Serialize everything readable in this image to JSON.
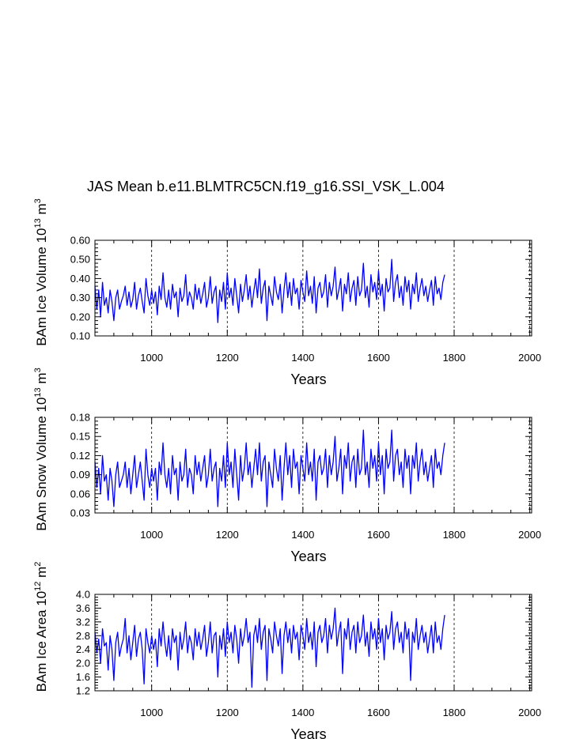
{
  "title": "JAS Mean b.e11.BLMTRC5CN.f19_g16.SSI_VSK_L.004",
  "style": {
    "line_color": "#0000ff",
    "grid": "vertical dashed at major x ticks"
  },
  "chart_data": [
    {
      "type": "line",
      "title": "",
      "xlabel": "Years",
      "ylabel_main": "BAm Ice Volume 10",
      "ylabel_sup": "13",
      "ylabel_tail": " m",
      "ylabel_sup2": "3",
      "xlim": [
        850,
        2005
      ],
      "ylim": [
        0.1,
        0.6
      ],
      "xticks": [
        1000,
        1200,
        1400,
        1600,
        1800,
        2000
      ],
      "yticks": [
        "0.10",
        "0.20",
        "0.30",
        "0.40",
        "0.50",
        "0.60"
      ],
      "series": [
        {
          "x_start": 850,
          "x_step": 5,
          "values": [
            0.36,
            0.24,
            0.34,
            0.2,
            0.38,
            0.26,
            0.3,
            0.22,
            0.34,
            0.28,
            0.18,
            0.3,
            0.34,
            0.24,
            0.28,
            0.31,
            0.36,
            0.26,
            0.33,
            0.25,
            0.29,
            0.38,
            0.24,
            0.31,
            0.35,
            0.28,
            0.22,
            0.4,
            0.31,
            0.26,
            0.34,
            0.27,
            0.33,
            0.21,
            0.36,
            0.29,
            0.43,
            0.3,
            0.25,
            0.34,
            0.24,
            0.37,
            0.3,
            0.33,
            0.2,
            0.35,
            0.28,
            0.31,
            0.42,
            0.26,
            0.33,
            0.3,
            0.24,
            0.37,
            0.29,
            0.35,
            0.27,
            0.32,
            0.38,
            0.25,
            0.3,
            0.41,
            0.27,
            0.33,
            0.36,
            0.17,
            0.34,
            0.28,
            0.38,
            0.24,
            0.43,
            0.3,
            0.35,
            0.26,
            0.4,
            0.31,
            0.22,
            0.37,
            0.28,
            0.34,
            0.42,
            0.29,
            0.36,
            0.25,
            0.33,
            0.4,
            0.3,
            0.45,
            0.27,
            0.35,
            0.39,
            0.18,
            0.36,
            0.31,
            0.26,
            0.41,
            0.33,
            0.29,
            0.37,
            0.22,
            0.34,
            0.43,
            0.3,
            0.38,
            0.26,
            0.4,
            0.32,
            0.35,
            0.24,
            0.39,
            0.33,
            0.28,
            0.44,
            0.31,
            0.36,
            0.27,
            0.41,
            0.22,
            0.35,
            0.38,
            0.3,
            0.33,
            0.42,
            0.25,
            0.38,
            0.31,
            0.36,
            0.46,
            0.29,
            0.34,
            0.4,
            0.23,
            0.37,
            0.32,
            0.43,
            0.28,
            0.35,
            0.39,
            0.26,
            0.41,
            0.31,
            0.34,
            0.48,
            0.3,
            0.36,
            0.25,
            0.42,
            0.33,
            0.38,
            0.29,
            0.44,
            0.31,
            0.37,
            0.23,
            0.4,
            0.33,
            0.35,
            0.5,
            0.28,
            0.38,
            0.42,
            0.3,
            0.36,
            0.26,
            0.41,
            0.33,
            0.39,
            0.24,
            0.37,
            0.32,
            0.43,
            0.28,
            0.35,
            0.4,
            0.31,
            0.36,
            0.28,
            0.34,
            0.39,
            0.26,
            0.41,
            0.32,
            0.35,
            0.29,
            0.38,
            0.42
          ]
        }
      ]
    },
    {
      "type": "line",
      "title": "",
      "xlabel": "Years",
      "ylabel_main": "BAm Snow Volume 10",
      "ylabel_sup": "13",
      "ylabel_tail": " m",
      "ylabel_sup2": "3",
      "xlim": [
        850,
        2005
      ],
      "ylim": [
        0.03,
        0.18
      ],
      "xticks": [
        1000,
        1200,
        1400,
        1600,
        1800,
        2000
      ],
      "yticks": [
        "0.03",
        "0.06",
        "0.09",
        "0.12",
        "0.15",
        "0.18"
      ],
      "series": [
        {
          "x_start": 850,
          "x_step": 5,
          "values": [
            0.11,
            0.07,
            0.1,
            0.06,
            0.12,
            0.08,
            0.09,
            0.05,
            0.1,
            0.08,
            0.04,
            0.09,
            0.11,
            0.07,
            0.08,
            0.09,
            0.11,
            0.07,
            0.1,
            0.06,
            0.09,
            0.12,
            0.07,
            0.09,
            0.11,
            0.08,
            0.05,
            0.13,
            0.09,
            0.07,
            0.1,
            0.08,
            0.1,
            0.05,
            0.11,
            0.09,
            0.14,
            0.09,
            0.07,
            0.1,
            0.06,
            0.12,
            0.09,
            0.1,
            0.05,
            0.11,
            0.08,
            0.09,
            0.13,
            0.07,
            0.1,
            0.09,
            0.06,
            0.12,
            0.09,
            0.11,
            0.08,
            0.1,
            0.12,
            0.07,
            0.09,
            0.13,
            0.08,
            0.1,
            0.11,
            0.04,
            0.1,
            0.08,
            0.12,
            0.07,
            0.14,
            0.09,
            0.11,
            0.07,
            0.13,
            0.09,
            0.05,
            0.12,
            0.08,
            0.1,
            0.14,
            0.09,
            0.11,
            0.07,
            0.1,
            0.13,
            0.09,
            0.14,
            0.08,
            0.11,
            0.12,
            0.04,
            0.11,
            0.09,
            0.07,
            0.13,
            0.1,
            0.08,
            0.12,
            0.05,
            0.1,
            0.14,
            0.09,
            0.12,
            0.07,
            0.13,
            0.1,
            0.11,
            0.06,
            0.12,
            0.1,
            0.08,
            0.14,
            0.09,
            0.11,
            0.08,
            0.13,
            0.05,
            0.11,
            0.12,
            0.09,
            0.1,
            0.13,
            0.07,
            0.12,
            0.09,
            0.11,
            0.15,
            0.08,
            0.1,
            0.13,
            0.06,
            0.12,
            0.1,
            0.14,
            0.08,
            0.11,
            0.12,
            0.07,
            0.13,
            0.09,
            0.1,
            0.16,
            0.09,
            0.11,
            0.07,
            0.13,
            0.1,
            0.12,
            0.08,
            0.14,
            0.09,
            0.12,
            0.06,
            0.13,
            0.1,
            0.11,
            0.16,
            0.08,
            0.12,
            0.13,
            0.09,
            0.11,
            0.07,
            0.13,
            0.1,
            0.12,
            0.06,
            0.12,
            0.1,
            0.14,
            0.08,
            0.11,
            0.13,
            0.09,
            0.11,
            0.08,
            0.1,
            0.12,
            0.07,
            0.13,
            0.1,
            0.11,
            0.09,
            0.12,
            0.14
          ]
        }
      ]
    },
    {
      "type": "line",
      "title": "",
      "xlabel": "Years",
      "ylabel_main": "BAm Ice Area 10",
      "ylabel_sup": "12",
      "ylabel_tail": " m",
      "ylabel_sup2": "2",
      "xlim": [
        850,
        2005
      ],
      "ylim": [
        1.2,
        4.0
      ],
      "xticks": [
        1000,
        1200,
        1400,
        1600,
        1800,
        2000
      ],
      "yticks": [
        "1.2",
        "1.6",
        "2.0",
        "2.4",
        "2.8",
        "3.2",
        "3.6",
        "4.0"
      ],
      "series": [
        {
          "x_start": 850,
          "x_step": 5,
          "values": [
            2.9,
            2.3,
            2.7,
            2.0,
            3.0,
            2.5,
            2.6,
            1.8,
            2.8,
            2.4,
            1.5,
            2.6,
            2.9,
            2.2,
            2.5,
            2.7,
            3.3,
            2.3,
            2.8,
            2.1,
            2.6,
            3.1,
            2.2,
            2.7,
            2.9,
            2.4,
            1.4,
            3.0,
            2.6,
            2.3,
            2.8,
            2.4,
            2.7,
            1.9,
            3.0,
            2.5,
            3.2,
            2.6,
            2.2,
            2.8,
            2.1,
            3.0,
            2.6,
            2.8,
            1.8,
            2.9,
            2.4,
            2.7,
            3.2,
            2.3,
            2.8,
            2.6,
            2.1,
            3.0,
            2.5,
            2.9,
            2.4,
            2.7,
            3.1,
            2.2,
            2.6,
            3.2,
            2.3,
            2.8,
            2.9,
            1.6,
            2.8,
            2.4,
            3.0,
            2.2,
            3.2,
            2.6,
            2.9,
            2.3,
            3.1,
            2.7,
            2.0,
            3.0,
            2.5,
            2.8,
            3.3,
            2.6,
            2.9,
            1.3,
            2.8,
            3.1,
            2.6,
            3.3,
            2.4,
            2.9,
            3.1,
            1.5,
            3.0,
            2.7,
            2.3,
            3.2,
            2.8,
            2.5,
            3.0,
            1.7,
            2.8,
            3.2,
            2.6,
            3.0,
            2.3,
            3.1,
            2.7,
            2.9,
            2.1,
            3.1,
            2.8,
            2.4,
            3.3,
            2.6,
            2.9,
            2.4,
            3.2,
            1.9,
            2.9,
            3.1,
            2.6,
            2.8,
            3.3,
            2.3,
            3.1,
            2.7,
            3.0,
            3.6,
            2.5,
            2.9,
            3.2,
            1.7,
            3.0,
            2.7,
            3.3,
            2.4,
            2.9,
            3.1,
            2.3,
            3.2,
            2.6,
            2.8,
            3.4,
            2.5,
            2.9,
            2.2,
            3.2,
            2.7,
            3.0,
            2.4,
            3.3,
            2.6,
            3.0,
            2.1,
            3.1,
            2.7,
            2.9,
            3.5,
            2.4,
            3.0,
            3.2,
            2.6,
            2.9,
            2.3,
            3.2,
            2.7,
            3.0,
            1.5,
            2.9,
            2.6,
            3.3,
            2.4,
            2.8,
            3.1,
            2.6,
            2.9,
            2.3,
            2.7,
            3.1,
            2.3,
            3.2,
            2.6,
            2.8,
            2.4,
            3.0,
            3.4
          ]
        }
      ]
    }
  ]
}
